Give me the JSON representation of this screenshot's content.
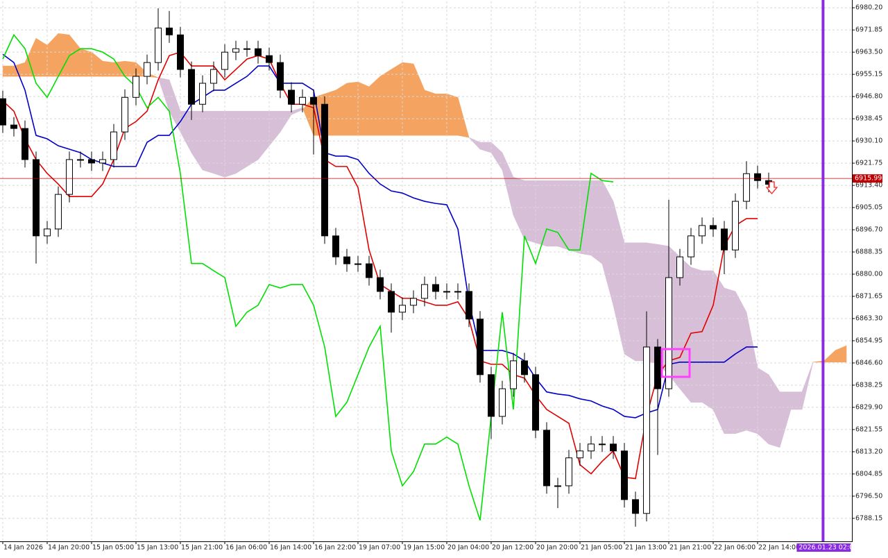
{
  "chart_data": {
    "type": "candlestick",
    "xlim": [
      -0.5,
      153
    ],
    "ylim": [
      6779.5,
      6982.6
    ],
    "grid": true,
    "yticks": [
      {
        "value": 6980.2,
        "label": "6980.20"
      },
      {
        "value": 6971.85,
        "label": "6971.85"
      },
      {
        "value": 6963.5,
        "label": "6963.50"
      },
      {
        "value": 6955.15,
        "label": "6955.15"
      },
      {
        "value": 6946.8,
        "label": "6946.80"
      },
      {
        "value": 6938.45,
        "label": "6938.45"
      },
      {
        "value": 6930.1,
        "label": "6930.10"
      },
      {
        "value": 6921.75,
        "label": "6921.75"
      },
      {
        "value": 6913.4,
        "label": "6913.40"
      },
      {
        "value": 6905.05,
        "label": "6905.05"
      },
      {
        "value": 6896.7,
        "label": "6896.70"
      },
      {
        "value": 6888.35,
        "label": "6888.35"
      },
      {
        "value": 6880,
        "label": "6880.00"
      },
      {
        "value": 6871.65,
        "label": "6871.65"
      },
      {
        "value": 6863.3,
        "label": "6863.30"
      },
      {
        "value": 6854.95,
        "label": "6854.95"
      },
      {
        "value": 6846.6,
        "label": "6846.60"
      },
      {
        "value": 6838.25,
        "label": "6838.25"
      },
      {
        "value": 6829.9,
        "label": "6829.90"
      },
      {
        "value": 6821.55,
        "label": "6821.55"
      },
      {
        "value": 6813.2,
        "label": "6813.20"
      },
      {
        "value": 6804.85,
        "label": "6804.85"
      },
      {
        "value": 6796.5,
        "label": "6796.50"
      },
      {
        "value": 6788.15,
        "label": "6788.15"
      }
    ],
    "xticks": [
      {
        "value": 0,
        "label": "14 Jan 2026"
      },
      {
        "value": 8,
        "label": "14 Jan 20:00"
      },
      {
        "value": 16,
        "label": "15 Jan 05:00"
      },
      {
        "value": 24,
        "label": "15 Jan 13:00"
      },
      {
        "value": 32,
        "label": "15 Jan 21:00"
      },
      {
        "value": 40,
        "label": "16 Jan 06:00"
      },
      {
        "value": 48,
        "label": "16 Jan 14:00"
      },
      {
        "value": 56,
        "label": "16 Jan 22:00"
      },
      {
        "value": 64,
        "label": "19 Jan 07:00"
      },
      {
        "value": 72,
        "label": "19 Jan 15:00"
      },
      {
        "value": 80,
        "label": "20 Jan 04:00"
      },
      {
        "value": 88,
        "label": "20 Jan 12:00"
      },
      {
        "value": 96,
        "label": "20 Jan 20:00"
      },
      {
        "value": 104,
        "label": "21 Jan 05:00"
      },
      {
        "value": 112,
        "label": "21 Jan 13:00"
      },
      {
        "value": 120,
        "label": "21 Jan 21:00"
      },
      {
        "value": 128,
        "label": "22 Jan 06:00"
      },
      {
        "value": 136,
        "label": "22 Jan 14:00"
      }
    ],
    "current_price": 6915.99,
    "current_price_color": "#c00000",
    "vline": {
      "x": 147.8,
      "label": "2026.01.23 02:00",
      "color": "#8a2be2"
    },
    "candles": {
      "x": [
        0,
        2,
        4,
        6,
        8,
        10,
        12,
        14,
        16,
        18,
        20,
        22,
        24,
        26,
        28,
        30,
        32,
        34,
        36,
        38,
        40,
        42,
        44,
        46,
        48,
        50,
        52,
        54,
        56,
        58,
        60,
        62,
        64,
        66,
        68,
        70,
        72,
        74,
        76,
        78,
        80,
        82,
        84,
        86,
        88,
        90,
        92,
        94,
        96,
        98,
        100,
        102,
        104,
        106,
        108,
        110,
        112,
        114,
        116,
        118,
        120,
        122,
        124,
        126,
        128,
        130,
        132,
        134,
        136,
        138
      ],
      "open": [
        6946.0,
        6936.1,
        6934.8,
        6923.1,
        6894.4,
        6897.0,
        6910.0,
        6923.1,
        6923.1,
        6921.8,
        6923.1,
        6933.5,
        6946.5,
        6954.4,
        6959.6,
        6972.6,
        6970.0,
        6957.0,
        6943.9,
        6951.8,
        6957.0,
        6963.5,
        6964.8,
        6964.8,
        6962.2,
        6959.6,
        6949.2,
        6943.9,
        6946.5,
        6943.9,
        6894.4,
        6886.5,
        6883.9,
        6883.9,
        6878.7,
        6873.5,
        6865.7,
        6868.3,
        6870.9,
        6876.1,
        6873.5,
        6873.5,
        6873.5,
        6863.1,
        6842.2,
        6826.5,
        6836.9,
        6847.4,
        6842.2,
        6821.3,
        6800.4,
        6800.4,
        6810.9,
        6813.5,
        6816.1,
        6816.1,
        6813.5,
        6795.2,
        6790.0,
        6852.6,
        6836.9,
        6878.7,
        6886.5,
        6894.4,
        6898.3,
        6897.0,
        6889.1,
        6907.4,
        6917.8,
        6915.2
      ],
      "high": [
        6949.0,
        6939.1,
        6937.8,
        6926.1,
        6900.0,
        6913.0,
        6926.1,
        6926.1,
        6926.1,
        6926.1,
        6936.5,
        6949.5,
        6957.4,
        6962.6,
        6980.0,
        6979.0,
        6973.0,
        6960.0,
        6954.8,
        6960.0,
        6966.5,
        6967.8,
        6967.8,
        6967.8,
        6965.2,
        6962.6,
        6952.2,
        6949.5,
        6949.5,
        6946.9,
        6897.4,
        6889.5,
        6886.9,
        6886.9,
        6881.7,
        6876.5,
        6871.3,
        6873.9,
        6879.1,
        6879.1,
        6876.5,
        6876.5,
        6876.5,
        6866.1,
        6845.2,
        6839.9,
        6850.4,
        6850.4,
        6845.2,
        6824.3,
        6803.4,
        6813.9,
        6816.5,
        6819.1,
        6819.1,
        6819.1,
        6816.5,
        6798.2,
        6866.0,
        6855.6,
        6908.0,
        6889.5,
        6897.4,
        6901.3,
        6901.3,
        6900.0,
        6910.4,
        6922.5,
        6920.8,
        6918.2
      ],
      "low": [
        6933.1,
        6931.8,
        6920.1,
        6884.0,
        6891.4,
        6894.0,
        6907.0,
        6920.1,
        6918.8,
        6918.8,
        6920.1,
        6930.5,
        6943.5,
        6951.4,
        6956.6,
        6967.0,
        6954.0,
        6938.0,
        6940.9,
        6948.8,
        6954.0,
        6960.5,
        6961.8,
        6959.2,
        6956.6,
        6946.2,
        6940.9,
        6940.9,
        6925.0,
        6891.4,
        6883.5,
        6880.9,
        6880.9,
        6875.7,
        6870.5,
        6858.0,
        6862.7,
        6865.3,
        6867.9,
        6870.5,
        6870.5,
        6870.5,
        6860.1,
        6839.2,
        6818.0,
        6823.5,
        6833.9,
        6839.2,
        6818.3,
        6797.4,
        6792.0,
        6797.4,
        6807.9,
        6810.5,
        6813.1,
        6810.5,
        6792.2,
        6785.0,
        6787.0,
        6812.0,
        6833.9,
        6875.7,
        6883.5,
        6891.4,
        6894.0,
        6880.0,
        6886.1,
        6904.4,
        6912.2,
        6910.8
      ],
      "close": [
        6936.1,
        6934.8,
        6923.1,
        6894.4,
        6897.0,
        6910.0,
        6923.1,
        6923.1,
        6921.8,
        6923.1,
        6933.5,
        6946.5,
        6954.4,
        6959.6,
        6972.6,
        6970.0,
        6957.0,
        6943.9,
        6951.8,
        6957.0,
        6963.5,
        6964.8,
        6964.8,
        6962.2,
        6959.6,
        6949.2,
        6943.9,
        6946.5,
        6943.9,
        6894.4,
        6886.5,
        6883.9,
        6883.9,
        6878.7,
        6873.5,
        6865.7,
        6868.3,
        6870.9,
        6876.1,
        6873.5,
        6873.5,
        6873.5,
        6863.1,
        6842.2,
        6826.5,
        6836.9,
        6847.4,
        6842.2,
        6821.3,
        6800.4,
        6800.4,
        6810.9,
        6813.5,
        6816.1,
        6816.1,
        6813.5,
        6795.2,
        6790.0,
        6852.6,
        6836.9,
        6878.7,
        6886.5,
        6894.4,
        6898.3,
        6897.0,
        6889.1,
        6907.4,
        6917.8,
        6915.2,
        6913.8
      ],
      "up_color": "#ffffff",
      "down_color": "#000000",
      "outline": "#000000"
    },
    "ichimoku": {
      "x": [
        0,
        2,
        4,
        6,
        8,
        10,
        12,
        14,
        16,
        18,
        20,
        22,
        24,
        26,
        28,
        30,
        32,
        34,
        36,
        38,
        40,
        42,
        44,
        46,
        48,
        50,
        52,
        54,
        56,
        58,
        60,
        62,
        64,
        66,
        68,
        70,
        72,
        74,
        76,
        78,
        80,
        82,
        84,
        86,
        88,
        90,
        92,
        94,
        96,
        98,
        100,
        102,
        104,
        106,
        108,
        110,
        112,
        114,
        116,
        118,
        120,
        122,
        124,
        126,
        128,
        130,
        132,
        134,
        136,
        138,
        140,
        142,
        144,
        146,
        148,
        150,
        152
      ],
      "lines": [
        {
          "color": "#e00000",
          "values": [
            6945.2,
            6941.3,
            6930.9,
            6923.1,
            6917.9,
            6913.9,
            6909.2,
            6909.2,
            6909.2,
            6913.9,
            6923.1,
            6934.8,
            6937.4,
            6941.3,
            6953.1,
            6962.2,
            6963.5,
            6958.3,
            6958.3,
            6958.3,
            6953.1,
            6957.0,
            6960.9,
            6962.2,
            6960.9,
            6951.8,
            6943.9,
            6943.9,
            6942.6,
            6923.1,
            6920.5,
            6920.5,
            6912.6,
            6889.1,
            6876.1,
            6873.5,
            6870.9,
            6870.9,
            6869.6,
            6868.3,
            6868.3,
            6869.6,
            6863.1,
            6847.4,
            6846.1,
            6846.1,
            6842.2,
            6840.9,
            6834.4,
            6829.1,
            6826.5,
            6823.9,
            6808.3,
            6804.9,
            6809.6,
            6813.5,
            6803.6,
            6803.1,
            6826.5,
            6842.2,
            6847.4,
            6848.7,
            6857.8,
            6858.4,
            6868.3,
            6890.5,
            6898.3,
            6900.9,
            6900.9,
            null,
            null,
            null,
            null,
            null,
            null,
            null,
            null
          ]
        },
        {
          "color": "#0000c8",
          "values": [
            6962.7,
            6959.6,
            6949.2,
            6932.2,
            6930.9,
            6928.3,
            6927.0,
            6925.7,
            6923.1,
            6921.8,
            6920.5,
            6920.5,
            6920.5,
            6929.6,
            6932.2,
            6932.2,
            6937.4,
            6943.9,
            6946.5,
            6949.2,
            6949.2,
            6951.8,
            6954.4,
            6958.3,
            6958.3,
            6951.8,
            6951.8,
            6951.8,
            6949.2,
            6925.7,
            6924.4,
            6924.4,
            6923.1,
            6917.9,
            6913.9,
            6911.3,
            6910.5,
            6908.7,
            6907.4,
            6906.6,
            6906.1,
            6897.0,
            6869.6,
            6851.3,
            6851.3,
            6851.3,
            6850.0,
            6847.4,
            6840.9,
            6835.7,
            6834.9,
            6834.4,
            6833.1,
            6832.3,
            6830.4,
            6829.1,
            6826.5,
            6826.0,
            6827.8,
            6829.1,
            6846.1,
            6846.9,
            6846.9,
            6846.9,
            6846.9,
            6846.9,
            6850.0,
            6852.6,
            6852.6,
            null,
            null,
            null,
            null,
            null,
            null,
            null,
            null
          ]
        },
        {
          "color": "#00e000",
          "values": [
            6960.9,
            6970.0,
            6964.8,
            6951.8,
            6946.5,
            6954.4,
            6962.2,
            6964.8,
            6964.8,
            6963.5,
            6960.9,
            6954.4,
            6950.5,
            6942.6,
            6946.5,
            6941.3,
            6917.9,
            6884.0,
            6884.0,
            6881.3,
            6878.7,
            6860.4,
            6865.7,
            6868.3,
            6876.1,
            6874.8,
            6876.1,
            6876.1,
            6868.3,
            6852.6,
            6826.5,
            6831.8,
            6842.2,
            6852.6,
            6860.4,
            6813.5,
            6800.4,
            6805.7,
            6816.1,
            6816.1,
            6818.7,
            6816.1,
            6800.4,
            6787.4,
            6826.5,
            6865.7,
            6829.1,
            6894.4,
            6884.0,
            6897.0,
            6895.7,
            6889.1,
            6889.1,
            6917.9,
            6915.2,
            6914.7,
            null,
            null,
            null,
            null,
            null,
            null,
            null,
            null,
            null,
            null,
            null,
            null,
            null,
            null,
            null,
            null,
            null,
            null,
            null,
            null,
            null
          ]
        }
      ],
      "cloud": {
        "up_color": "#f4a460",
        "down_color": "#d8bfd8",
        "span_a": [
          6958.3,
          6958.3,
          6959.6,
          6968.7,
          6966.1,
          6970.5,
          6970.0,
          6964.8,
          6963.5,
          6960.1,
          6959.6,
          6960.1,
          6959.6,
          6955.7,
          6953.9,
          6941.3,
          6933.5,
          6925.7,
          6919.2,
          6917.9,
          6916.5,
          6917.9,
          6920.5,
          6923.1,
          6928.3,
          6933.5,
          6940.0,
          6941.8,
          6946.5,
          6947.8,
          6949.2,
          6951.8,
          6952.3,
          6950.5,
          6954.4,
          6957.0,
          6959.6,
          6959.1,
          6949.2,
          6947.8,
          6947.8,
          6946.5,
          6931.4,
          6927.0,
          6925.7,
          6919.2,
          6902.2,
          6893.1,
          6891.8,
          6890.5,
          6890.5,
          6889.1,
          6887.8,
          6887.1,
          6883.9,
          6868.3,
          6850.0,
          6847.4,
          6847.4,
          6846.1,
          6842.2,
          6836.9,
          6831.8,
          6831.8,
          6829.1,
          6820.0,
          6820.0,
          6821.3,
          6820.0,
          6816.1,
          6814.8,
          6829.1,
          6829.1,
          6846.9,
          6847.4,
          6851.3,
          6853.1
        ],
        "span_b": [
          6954.4,
          6954.4,
          6954.4,
          6954.4,
          6954.4,
          6954.4,
          6954.4,
          6954.4,
          6954.4,
          6954.4,
          6954.4,
          6954.4,
          6954.4,
          6954.4,
          6953.9,
          6953.1,
          6941.3,
          6941.3,
          6941.3,
          6941.3,
          6941.3,
          6941.3,
          6941.3,
          6941.3,
          6941.3,
          6941.3,
          6941.3,
          6942.6,
          6932.2,
          6932.2,
          6932.2,
          6932.2,
          6932.2,
          6932.2,
          6932.2,
          6932.2,
          6932.2,
          6932.2,
          6932.2,
          6932.2,
          6932.2,
          6932.2,
          6931.4,
          6929.6,
          6929.6,
          6925.7,
          6916.5,
          6915.2,
          6915.2,
          6915.2,
          6915.2,
          6915.2,
          6915.2,
          6915.2,
          6915.2,
          6907.4,
          6891.8,
          6891.8,
          6891.8,
          6891.2,
          6890.5,
          6886.5,
          6882.6,
          6881.3,
          6881.3,
          6874.8,
          6873.5,
          6865.7,
          6844.8,
          6842.2,
          6835.7,
          6835.7,
          6835.7,
          6846.9,
          6846.9,
          6846.9,
          6846.9
        ]
      }
    }
  }
}
